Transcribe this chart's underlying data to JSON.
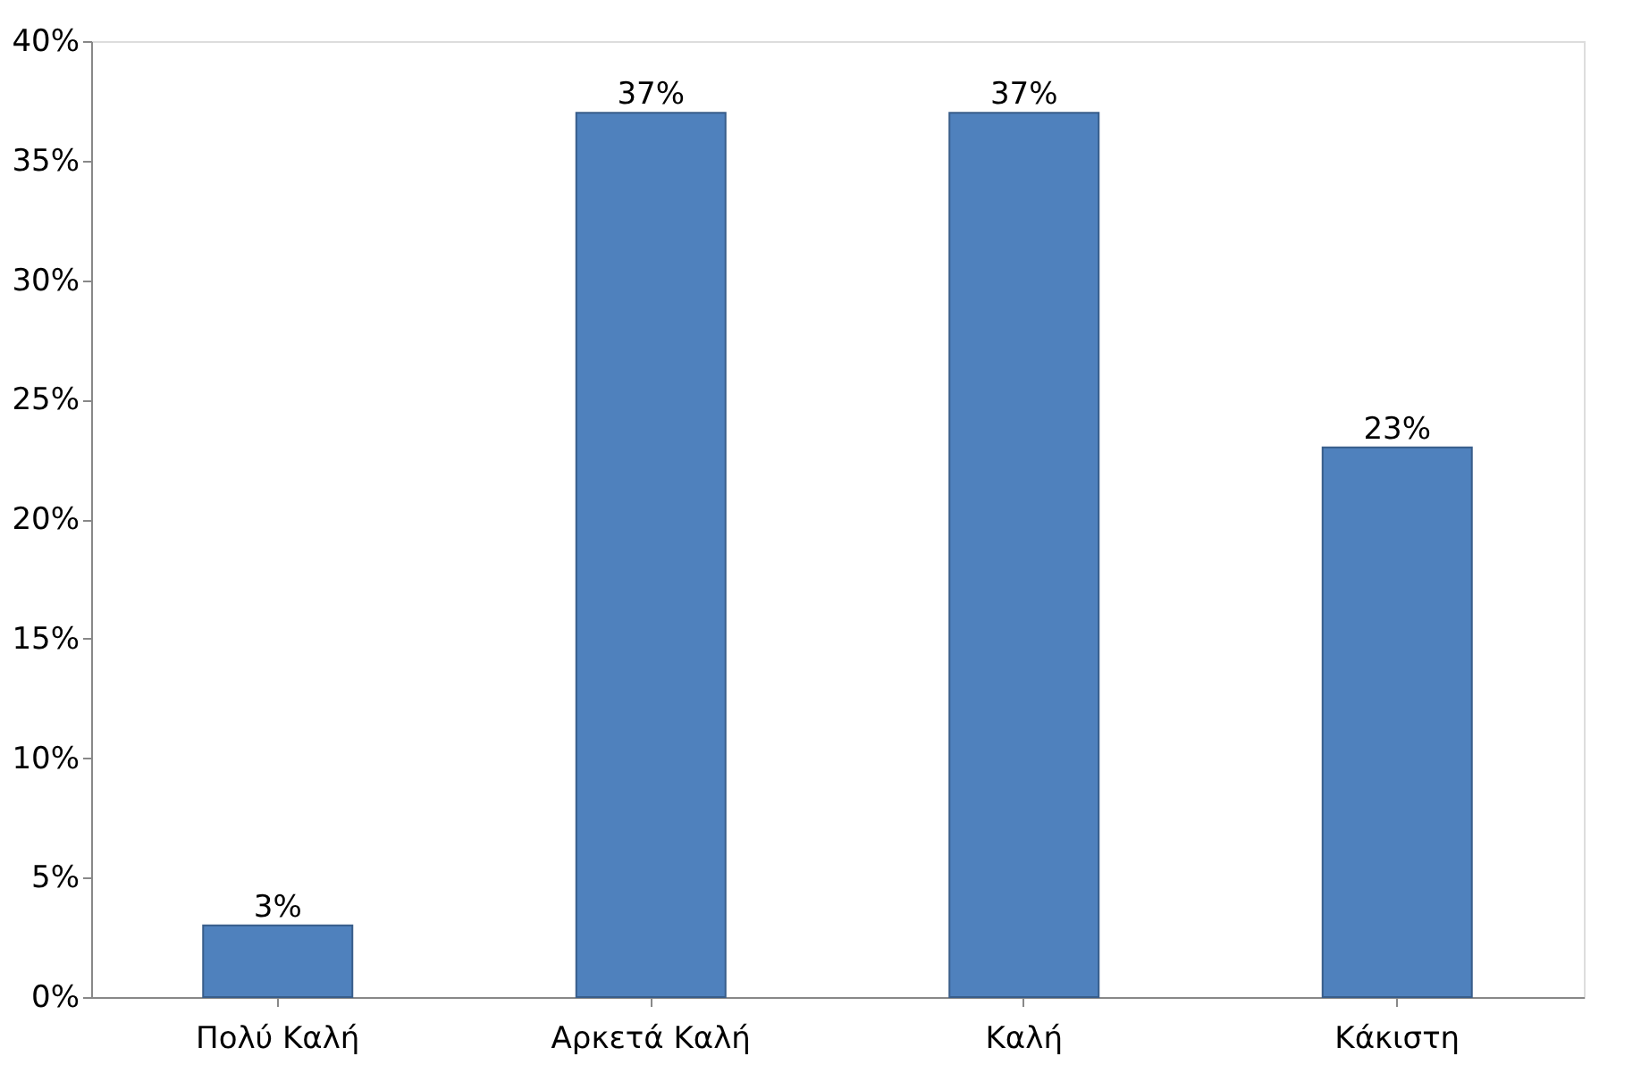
{
  "chart_data": {
    "type": "bar",
    "categories": [
      "Πολύ Καλή",
      "Αρκετά Καλή",
      "Καλή",
      "Κάκιστη"
    ],
    "values": [
      3,
      37,
      37,
      23
    ],
    "value_labels": [
      "3%",
      "37%",
      "37%",
      "23%"
    ],
    "color": "#4f81bd",
    "ylim": [
      0,
      40
    ],
    "yticks": [
      {
        "value": 0,
        "label": "0%"
      },
      {
        "value": 5,
        "label": "5%"
      },
      {
        "value": 10,
        "label": "10%"
      },
      {
        "value": 15,
        "label": "15%"
      },
      {
        "value": 20,
        "label": "20%"
      },
      {
        "value": 25,
        "label": "25%"
      },
      {
        "value": 30,
        "label": "30%"
      },
      {
        "value": 35,
        "label": "35%"
      },
      {
        "value": 40,
        "label": "40%"
      }
    ],
    "grid": false
  }
}
